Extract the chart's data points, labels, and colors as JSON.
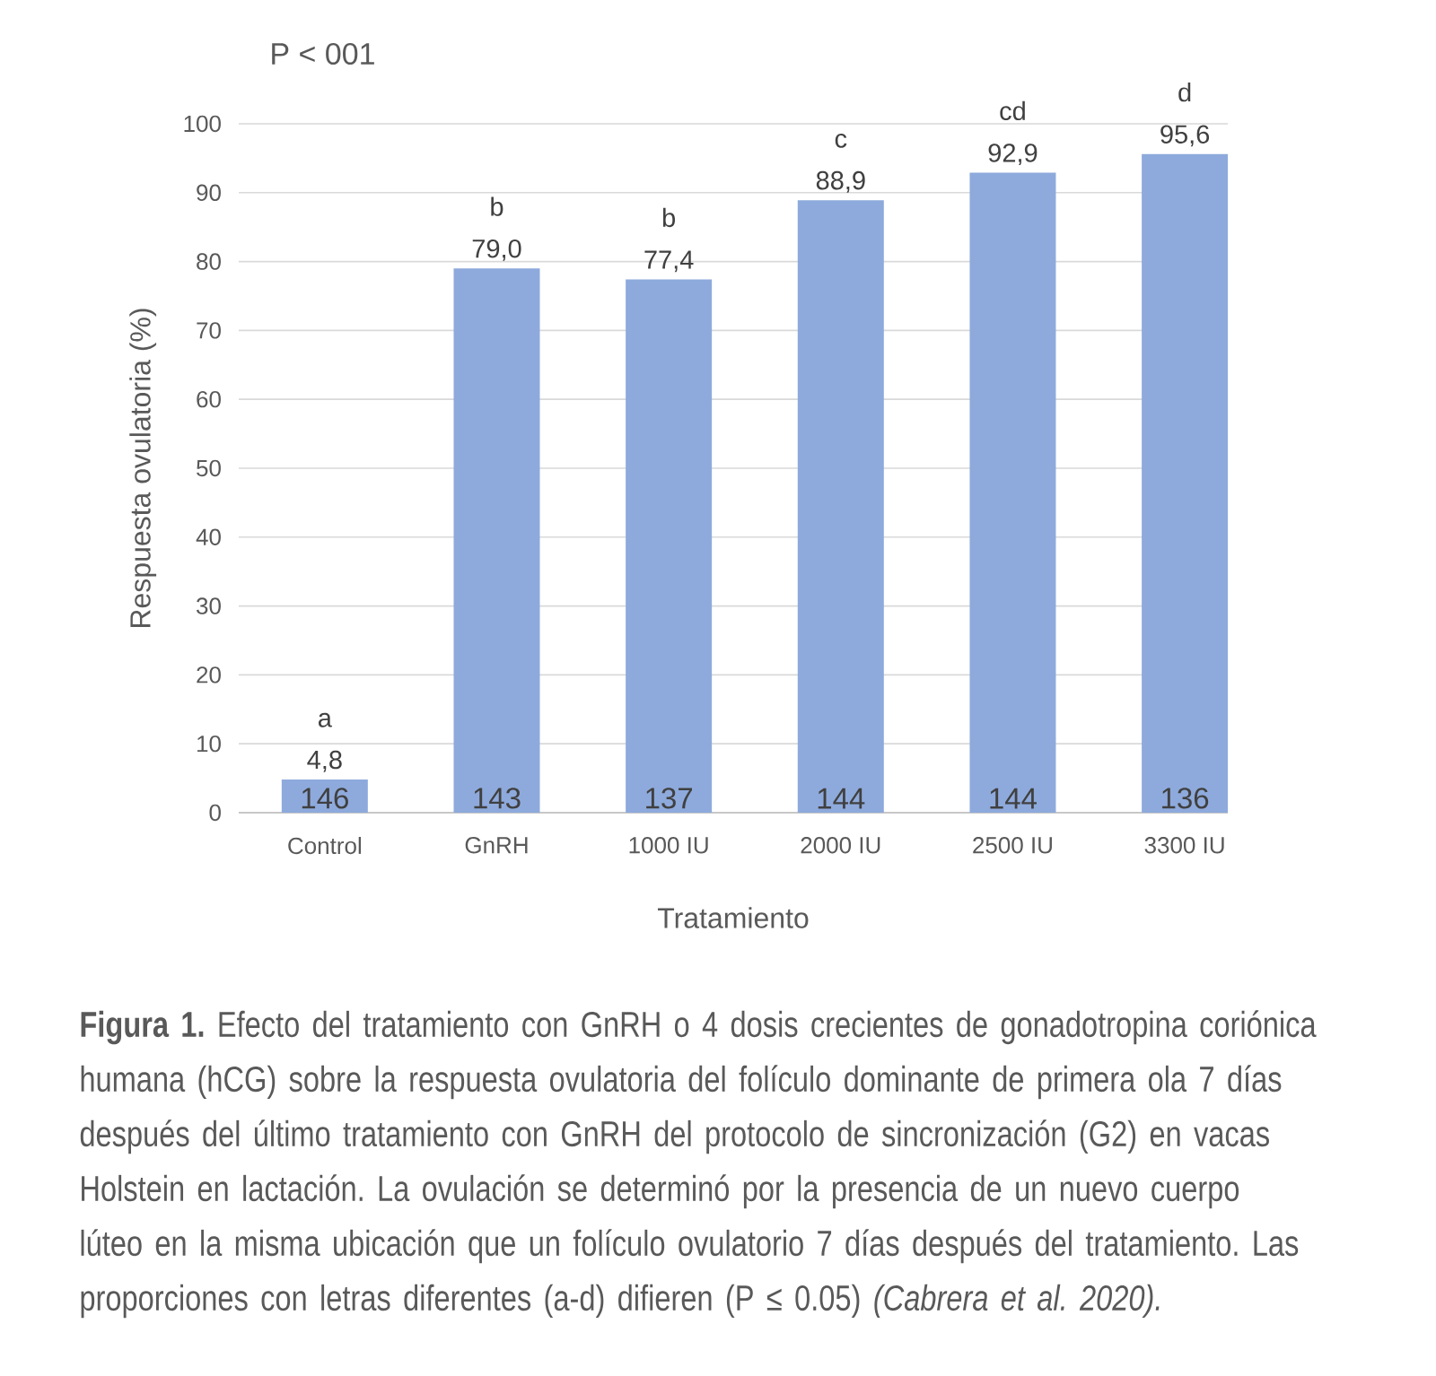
{
  "chart_data": {
    "type": "bar",
    "xlabel": "Tratamiento",
    "ylabel": "Respuesta ovulatoria (%)",
    "categories": [
      "Control",
      "GnRH",
      "1000 IU",
      "2000 IU",
      "2500 IU",
      "3300 IU"
    ],
    "values": [
      4.8,
      79.0,
      77.4,
      88.9,
      92.9,
      95.6
    ],
    "value_labels": [
      "4,8",
      "79,0",
      "77,4",
      "88,9",
      "92,9",
      "95,6"
    ],
    "color": "#8eaadc",
    "ylim": [
      0,
      100
    ],
    "yticks": [
      0,
      10,
      20,
      30,
      40,
      50,
      60,
      70,
      80,
      90,
      100
    ],
    "grid": "y",
    "annotations": [
      "P < 001",
      {
        "text": "a",
        "x": "Control",
        "y": 4.8
      },
      {
        "text": "b",
        "x": "GnRH",
        "y": 79.0
      },
      {
        "text": "b",
        "x": "1000 IU",
        "y": 77.4
      },
      {
        "text": "c",
        "x": "2000 IU",
        "y": 88.9
      },
      {
        "text": "cd",
        "x": "2500 IU",
        "y": 92.9
      },
      {
        "text": "d",
        "x": "3300 IU",
        "y": 95.6
      },
      {
        "text": "146",
        "x": "Control",
        "y": 0
      },
      {
        "text": "143",
        "x": "GnRH",
        "y": 0
      },
      {
        "text": "137",
        "x": "1000 IU",
        "y": 0
      },
      {
        "text": "144",
        "x": "2000 IU",
        "y": 0
      },
      {
        "text": "144",
        "x": "2500 IU",
        "y": 0
      },
      {
        "text": "136",
        "x": "3300 IU",
        "y": 0
      },
      "**Figura 1.** Efecto del tratamiento con GnRH o 4 dosis crecientes de gonadotropina coriónica humana (hCG) sobre la respuesta ovulatoria del folículo dominante de primera ola 7 días después del último tratamiento con GnRH del protocolo de sincronización (G2) en vacas Holstein en lactación. La ovulación se determinó por la presencia de un nuevo cuerpo lúteo en la misma ubicación que un folículo ovulatorio 7 días después del tratamiento. Las proporciones con letras diferentes (a-d) difieren (P ≤ 0.05) *(Cabrera et al. 2020).*"
    ]
  }
}
